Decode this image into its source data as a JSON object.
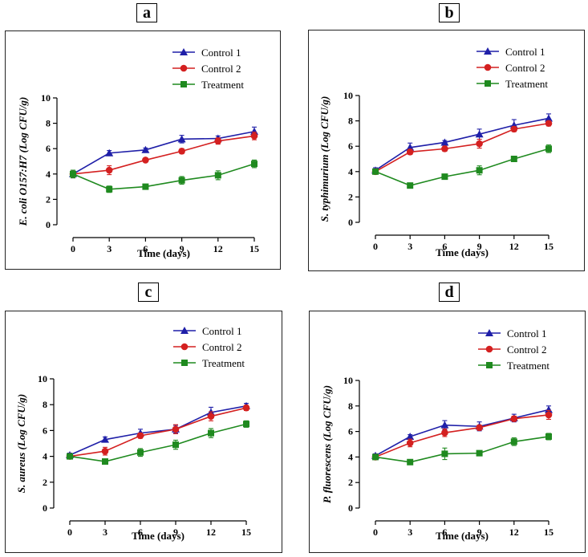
{
  "panels": [
    {
      "label": "a"
    },
    {
      "label": "b"
    },
    {
      "label": "c"
    },
    {
      "label": "d"
    }
  ],
  "colors": {
    "control1": "#1f1fa8",
    "control2": "#d42020",
    "treatment": "#1f8a1f"
  },
  "chart_data": [
    {
      "type": "line",
      "xlabel": "Time (days)",
      "ylabel_italic": "E. coli O157:H7",
      "ylabel_plain": "(Log CFU/g)",
      "x": [
        0,
        3,
        6,
        9,
        12,
        15
      ],
      "ylim": [
        0,
        10
      ],
      "yticks": [
        0,
        2,
        4,
        6,
        8,
        10
      ],
      "legend_position": "top-right",
      "series": [
        {
          "name": "Control 1",
          "marker": "triangle",
          "values": [
            4.0,
            5.65,
            5.9,
            6.75,
            6.8,
            7.35
          ],
          "errors": [
            0.3,
            0.2,
            0.15,
            0.3,
            0.2,
            0.35
          ]
        },
        {
          "name": "Control 2",
          "marker": "circle",
          "values": [
            4.0,
            4.3,
            5.1,
            5.8,
            6.6,
            7.0
          ],
          "errors": [
            0.3,
            0.35,
            0.15,
            0.2,
            0.25,
            0.3
          ]
        },
        {
          "name": "Treatment",
          "marker": "square",
          "values": [
            4.0,
            2.8,
            3.0,
            3.5,
            3.9,
            4.8
          ],
          "errors": [
            0.3,
            0.25,
            0.1,
            0.3,
            0.35,
            0.3
          ]
        }
      ]
    },
    {
      "type": "line",
      "xlabel": "Time (days)",
      "ylabel_italic": "S. typhimurium",
      "ylabel_plain": "(Log CFU/g)",
      "x": [
        0,
        3,
        6,
        9,
        12,
        15
      ],
      "ylim": [
        0,
        10
      ],
      "yticks": [
        0,
        2,
        4,
        6,
        8,
        10
      ],
      "legend_position": "top-right",
      "series": [
        {
          "name": "Control 1",
          "marker": "triangle",
          "values": [
            4.1,
            5.9,
            6.3,
            6.95,
            7.65,
            8.2
          ],
          "errors": [
            0.2,
            0.35,
            0.15,
            0.4,
            0.45,
            0.35
          ]
        },
        {
          "name": "Control 2",
          "marker": "circle",
          "values": [
            4.0,
            5.55,
            5.8,
            6.2,
            7.35,
            7.8
          ],
          "errors": [
            0.2,
            0.2,
            0.2,
            0.35,
            0.2,
            0.2
          ]
        },
        {
          "name": "Treatment",
          "marker": "square",
          "values": [
            4.0,
            2.9,
            3.6,
            4.1,
            5.0,
            5.8
          ],
          "errors": [
            0.2,
            0.2,
            0.1,
            0.35,
            0.2,
            0.3
          ]
        }
      ]
    },
    {
      "type": "line",
      "xlabel": "Time (days)",
      "ylabel_italic": "S. aureus",
      "ylabel_plain": "(Log CFU/g)",
      "x": [
        0,
        3,
        6,
        9,
        12,
        15
      ],
      "ylim": [
        0,
        10
      ],
      "yticks": [
        0,
        2,
        4,
        6,
        8,
        10
      ],
      "legend_position": "top-right",
      "series": [
        {
          "name": "Control 1",
          "marker": "triangle",
          "values": [
            4.1,
            5.3,
            5.8,
            6.1,
            7.4,
            7.9
          ],
          "errors": [
            0.15,
            0.2,
            0.3,
            0.3,
            0.4,
            0.2
          ]
        },
        {
          "name": "Control 2",
          "marker": "circle",
          "values": [
            4.0,
            4.4,
            5.6,
            6.1,
            7.1,
            7.75
          ],
          "errors": [
            0.15,
            0.3,
            0.2,
            0.35,
            0.35,
            0.2
          ]
        },
        {
          "name": "Treatment",
          "marker": "square",
          "values": [
            4.0,
            3.6,
            4.3,
            4.9,
            5.8,
            6.5
          ],
          "errors": [
            0.15,
            0.15,
            0.3,
            0.35,
            0.35,
            0.25
          ]
        }
      ]
    },
    {
      "type": "line",
      "xlabel": "Time (days)",
      "ylabel_italic": "P. fluorescens",
      "ylabel_plain": "(Log CFU/g)",
      "x": [
        0,
        3,
        6,
        9,
        12,
        15
      ],
      "ylim": [
        0,
        10
      ],
      "yticks": [
        0,
        2,
        4,
        6,
        8,
        10
      ],
      "legend_position": "top-right",
      "series": [
        {
          "name": "Control 1",
          "marker": "triangle",
          "values": [
            4.1,
            5.6,
            6.5,
            6.4,
            7.05,
            7.7
          ],
          "errors": [
            0.15,
            0.15,
            0.35,
            0.35,
            0.3,
            0.3
          ]
        },
        {
          "name": "Control 2",
          "marker": "circle",
          "values": [
            4.0,
            5.1,
            5.9,
            6.3,
            7.0,
            7.3
          ],
          "errors": [
            0.15,
            0.3,
            0.3,
            0.2,
            0.2,
            0.35
          ]
        },
        {
          "name": "Treatment",
          "marker": "square",
          "values": [
            4.0,
            3.6,
            4.25,
            4.3,
            5.2,
            5.6
          ],
          "errors": [
            0.15,
            0.1,
            0.45,
            0.1,
            0.3,
            0.25
          ]
        }
      ]
    }
  ]
}
